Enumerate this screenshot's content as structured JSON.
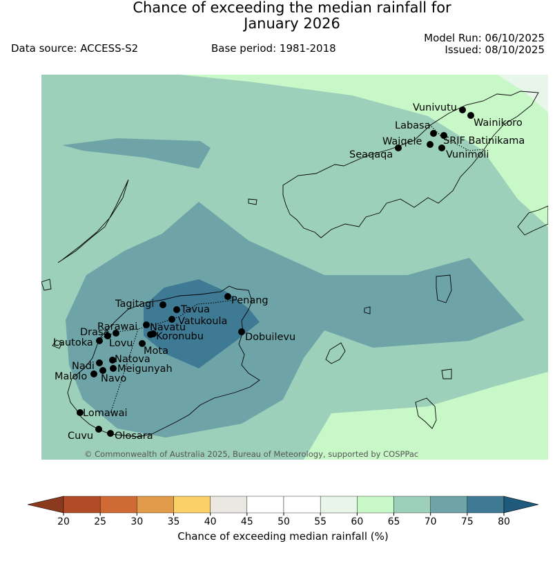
{
  "title": {
    "line1": "Chance of exceeding the median rainfall for",
    "line2": "January 2026"
  },
  "meta": {
    "data_source": "Data source: ACCESS-S2",
    "base_period": "Base period: 1981-2018",
    "model_run": "Model Run: 06/10/2025",
    "issued": "Issued: 08/10/2025"
  },
  "copyright": "© Commonwealth of Australia 2025, Bureau of Meteorology, supported by COSPPac",
  "colorbar": {
    "label": "Chance of exceeding median rainfall (%)",
    "ticks": [
      "20",
      "25",
      "30",
      "35",
      "40",
      "45",
      "50",
      "55",
      "60",
      "65",
      "70",
      "75",
      "80"
    ],
    "colors": [
      "#8b3a1e",
      "#b24c28",
      "#d06a35",
      "#e29a4b",
      "#fcd068",
      "#ebe8e4",
      "#ffffff",
      "#ffffff",
      "#e8f5e9",
      "#c8f7c8",
      "#9dd0bb",
      "#6ea4a7",
      "#3f7a95",
      "#1f5a7d"
    ]
  },
  "map_colors": {
    "band_55_60": "#e8f5e9",
    "band_60_65": "#c8f7c8",
    "band_65_70": "#9dd0bb",
    "band_70_75": "#6ea4a7",
    "band_75_80": "#3f7a95"
  },
  "towns": [
    {
      "name": "Vunivutu"
    },
    {
      "name": "Wainikoro"
    },
    {
      "name": "Labasa"
    },
    {
      "name": "SRIF Batinikama"
    },
    {
      "name": "Waiqele"
    },
    {
      "name": "Seaqaqa"
    },
    {
      "name": "Vunimoli"
    },
    {
      "name": "Penang"
    },
    {
      "name": "Tagitagi"
    },
    {
      "name": "Tavua"
    },
    {
      "name": "Vatukoula"
    },
    {
      "name": "Rarawai"
    },
    {
      "name": "Navatu"
    },
    {
      "name": "Drasa"
    },
    {
      "name": "Koronubu"
    },
    {
      "name": "Lautoka"
    },
    {
      "name": "Lovu"
    },
    {
      "name": "Mota"
    },
    {
      "name": "Dobuilevu"
    },
    {
      "name": "Natova"
    },
    {
      "name": "Nadi"
    },
    {
      "name": "Meigunyah"
    },
    {
      "name": "Malolo"
    },
    {
      "name": "Navo"
    },
    {
      "name": "Lomawai"
    },
    {
      "name": "Cuvu"
    },
    {
      "name": "Olosara"
    }
  ]
}
